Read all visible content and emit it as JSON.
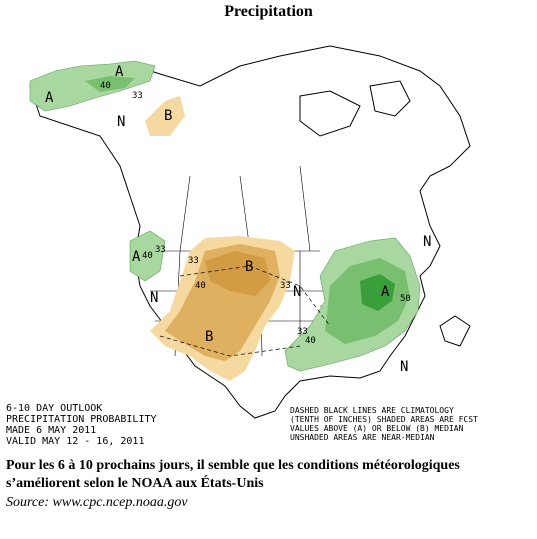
{
  "title": "Precipitation",
  "outlook": {
    "lines": [
      "6-10 DAY OUTLOOK",
      "PRECIPITATION PROBABILITY",
      "MADE  6 MAY 2011",
      "VALID  MAY 12 - 16, 2011"
    ]
  },
  "legend": {
    "lines": [
      "DASHED BLACK LINES ARE CLIMATOLOGY",
      "(TENTH OF INCHES) SHADED AREAS ARE FCST",
      "VALUES ABOVE (A) OR BELOW (B) MEDIAN",
      "UNSHADED AREAS ARE NEAR-MEDIAN"
    ]
  },
  "labels": {
    "A": "A",
    "B": "B",
    "N": "N",
    "v33": "33",
    "v40": "40",
    "v50": "50"
  },
  "colors": {
    "above_light": "#a8d8a0",
    "above_mid": "#78c070",
    "above_dark": "#3a9e3a",
    "below_light": "#f5d9a0",
    "below_mid": "#deb060",
    "below_dark": "#c89030"
  },
  "caption": "Pour les 6 à 10 prochains jours, il semble que les conditions météorologiques s’améliorent selon le NOAA aux États-Unis",
  "source": "Source: www.cpc.ncep.noaa.gov"
}
